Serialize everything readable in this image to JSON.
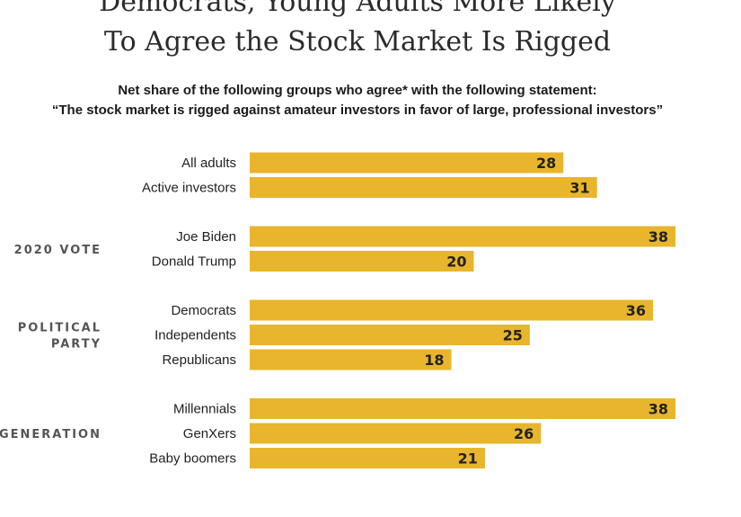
{
  "chart_data": {
    "type": "bar",
    "orientation": "horizontal",
    "title_lines": [
      "Democrats, Young Adults More Likely",
      "To Agree the Stock Market Is Rigged"
    ],
    "subtitle_lines": [
      "Net share of the following groups who agree* with the following statement:",
      "“The stock market is rigged against amateur investors in favor of large, professional investors”"
    ],
    "bar_color": "#e8b52c",
    "groups": [
      {
        "label_lines": [],
        "categories": [
          "All adults",
          "Active investors"
        ],
        "values": [
          28,
          31
        ]
      },
      {
        "label_lines": [
          "2020 VOTE"
        ],
        "categories": [
          "Joe Biden",
          "Donald Trump"
        ],
        "values": [
          38,
          20
        ]
      },
      {
        "label_lines": [
          "POLITICAL",
          "PARTY"
        ],
        "categories": [
          "Democrats",
          "Independents",
          "Republicans"
        ],
        "values": [
          36,
          25,
          18
        ]
      },
      {
        "label_lines": [
          "GENERATION"
        ],
        "categories": [
          "Millennials",
          "GenXers",
          "Baby boomers"
        ],
        "values": [
          38,
          26,
          21
        ]
      }
    ],
    "xlim": [
      0,
      38
    ],
    "grid": false,
    "legend": "none"
  }
}
